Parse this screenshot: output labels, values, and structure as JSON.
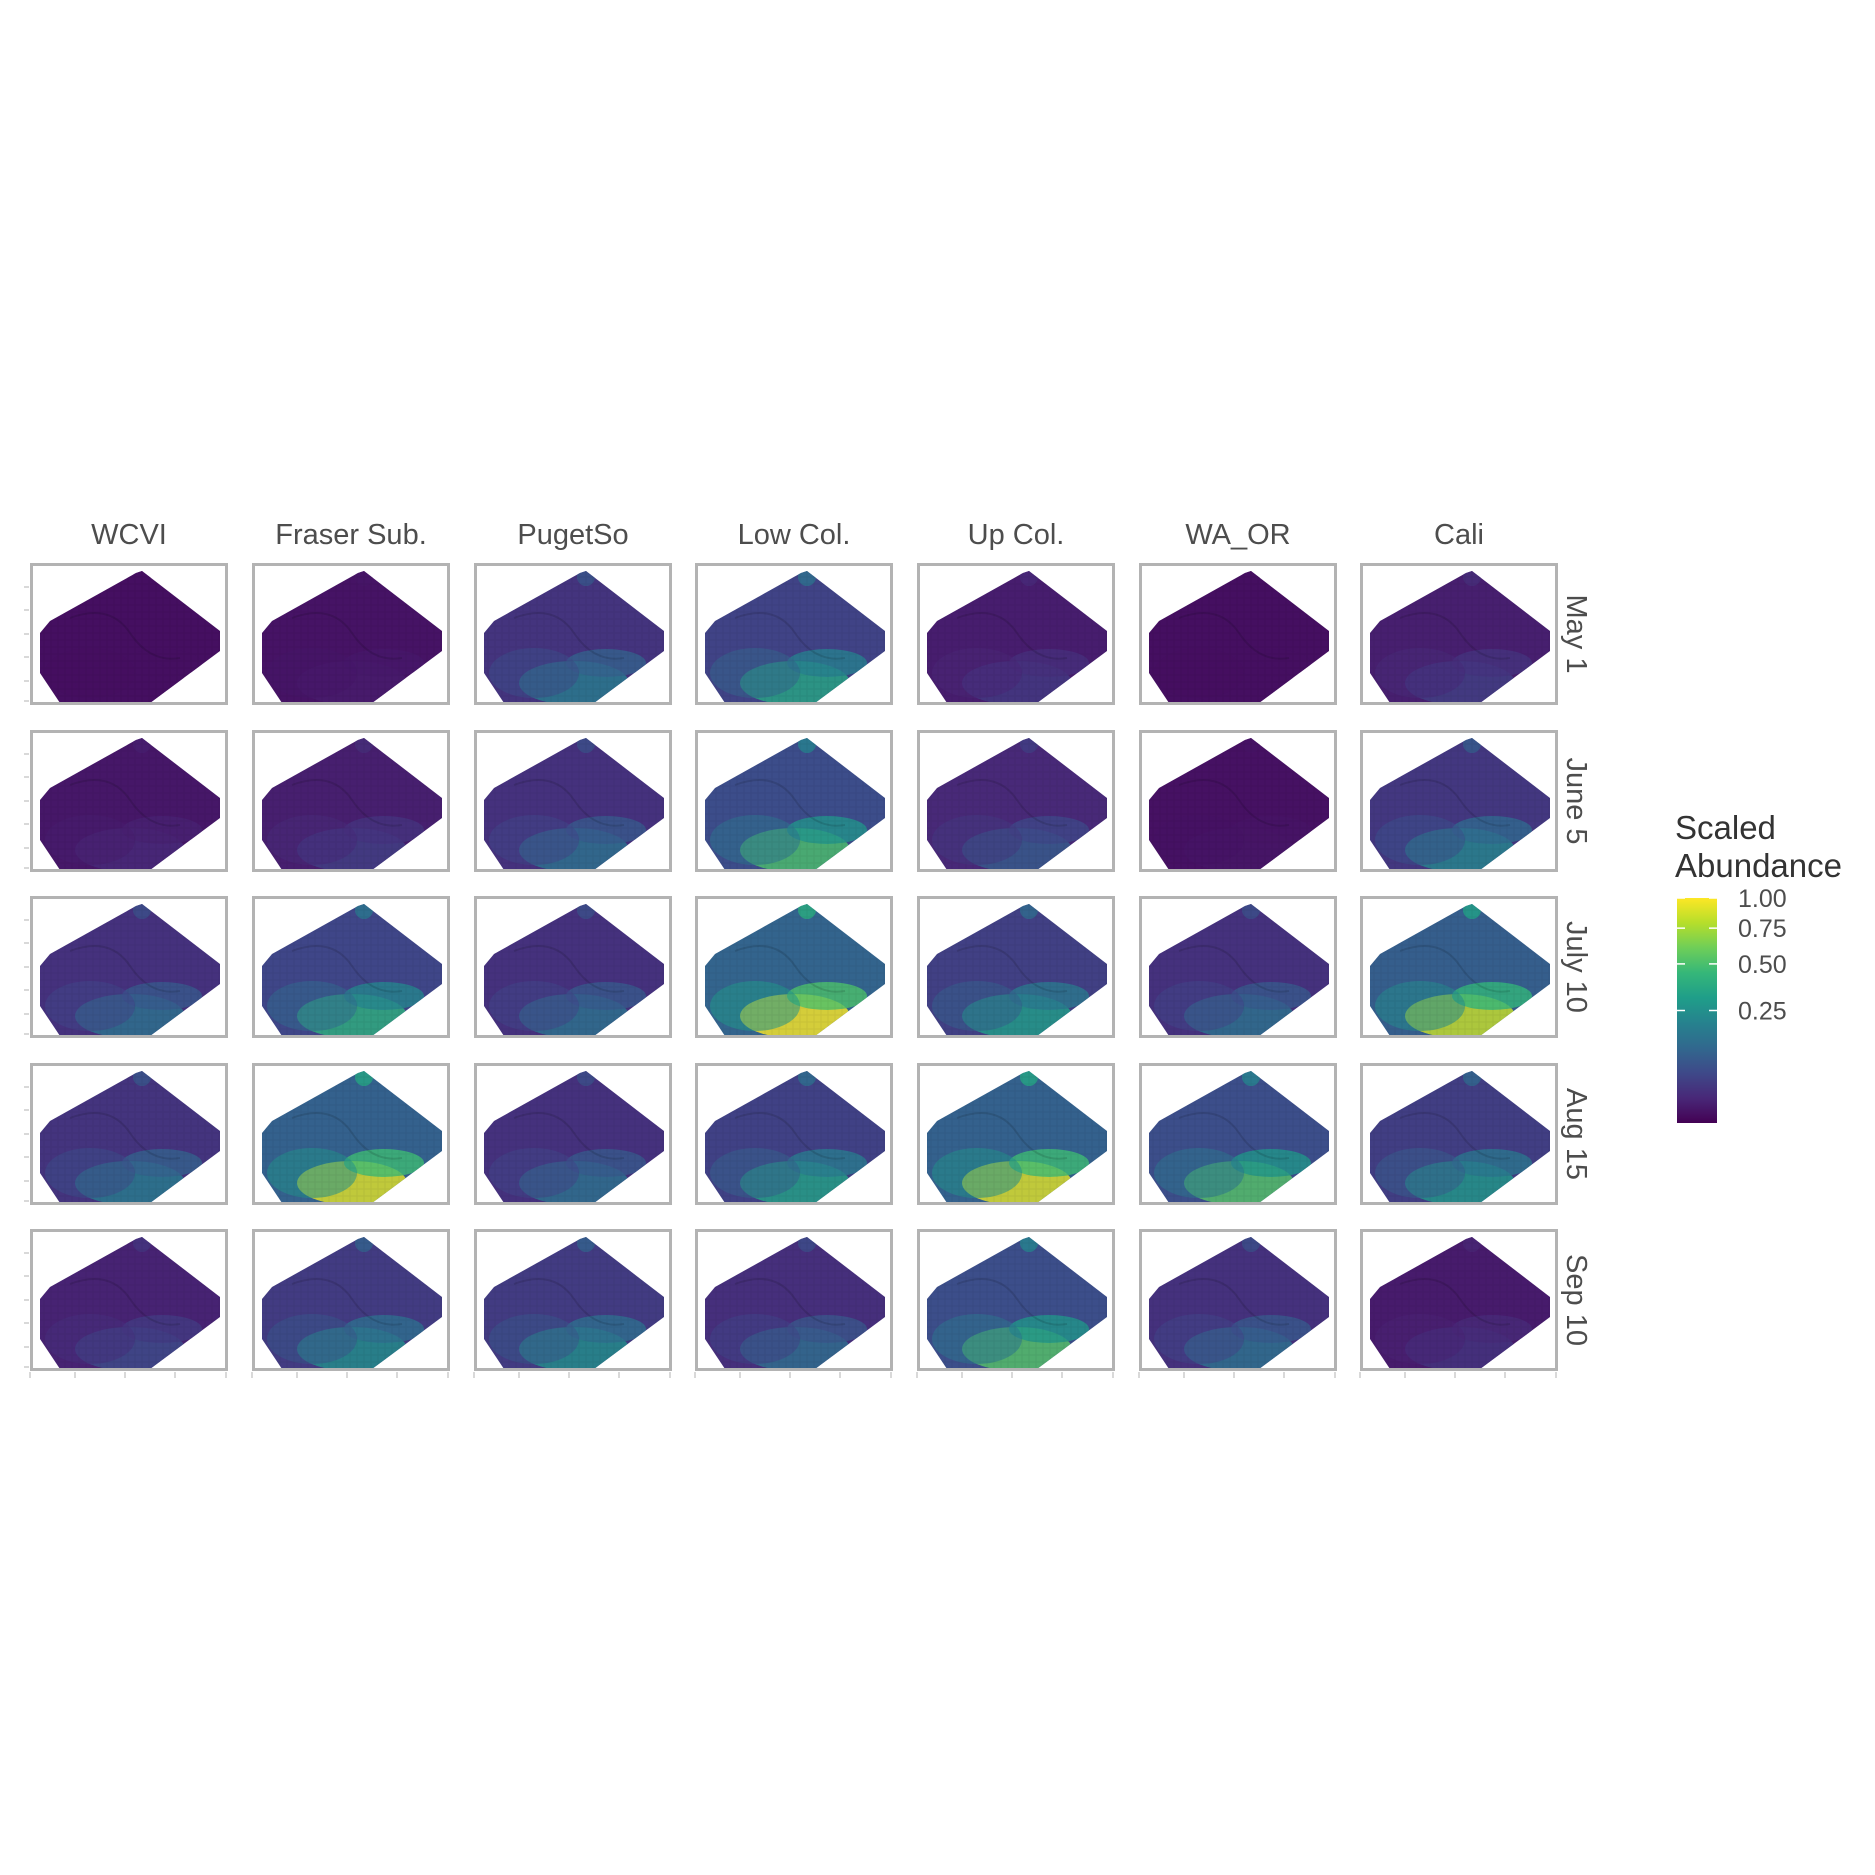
{
  "chart_data": {
    "type": "heatmap",
    "title": "",
    "xlabel": "",
    "ylabel": "",
    "columns": [
      "WCVI",
      "Fraser Sub.",
      "PugetSo",
      "Low Col.",
      "Up Col.",
      "WA_OR",
      "Cali"
    ],
    "rows": [
      "May 1",
      "June 5",
      "July 10",
      "Aug 15",
      "Sep 10"
    ],
    "relative_intensity": [
      [
        0.0,
        0.04,
        0.4,
        0.58,
        0.14,
        0.0,
        0.16
      ],
      [
        0.08,
        0.16,
        0.36,
        0.7,
        0.26,
        0.02,
        0.44
      ],
      [
        0.36,
        0.62,
        0.36,
        1.0,
        0.54,
        0.36,
        0.92
      ],
      [
        0.4,
        0.96,
        0.36,
        0.56,
        0.96,
        0.72,
        0.52
      ],
      [
        0.2,
        0.48,
        0.48,
        0.34,
        0.72,
        0.36,
        0.12
      ]
    ],
    "legend": {
      "title_lines": [
        "Scaled",
        "Abundance"
      ],
      "ticks": [
        "1.00",
        "0.75",
        "0.50",
        "0.25"
      ],
      "tick_values": [
        1.0,
        0.75,
        0.5,
        0.25
      ],
      "scale": "sqrt",
      "placement": "right"
    },
    "colors": {
      "viridis": [
        "#440154",
        "#482878",
        "#3e4989",
        "#31688e",
        "#26828e",
        "#1f9e89",
        "#35b779",
        "#6ece58",
        "#b5de2b",
        "#fde725"
      ],
      "panel_border": "#b3b3b3"
    }
  }
}
